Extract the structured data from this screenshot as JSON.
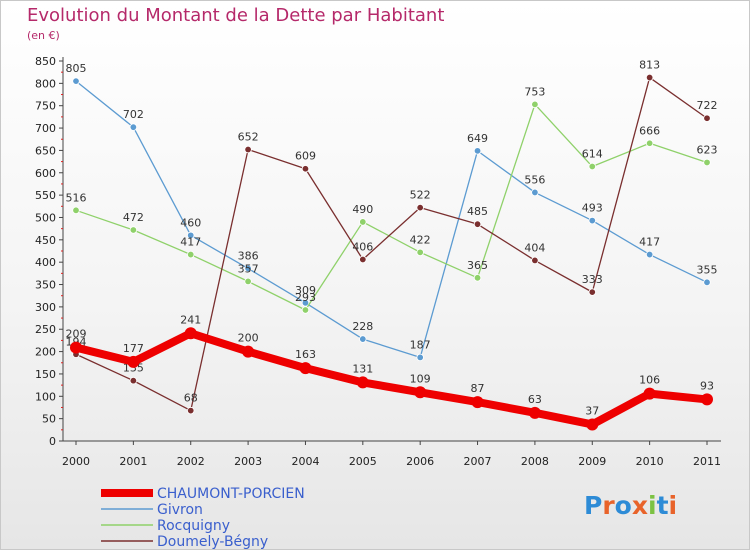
{
  "header": {
    "title": "Evolution du Montant de la Dette par Habitant",
    "subtitle": "(en €)"
  },
  "logo": {
    "text": "Proxiti",
    "letter_colors": [
      "#2d8bd6",
      "#e8632a",
      "#2d8bd6",
      "#e8632a",
      "#7cc243",
      "#2d8bd6",
      "#e8632a"
    ]
  },
  "chart_data": {
    "type": "line",
    "title": "Evolution du Montant de la Dette par Habitant",
    "subtitle": "(en €)",
    "xlabel": "",
    "ylabel": "",
    "x": [
      "2000",
      "2001",
      "2002",
      "2003",
      "2004",
      "2005",
      "2006",
      "2007",
      "2008",
      "2009",
      "2010",
      "2011"
    ],
    "ylim": [
      0,
      850
    ],
    "yticks": [
      0,
      50,
      100,
      150,
      200,
      250,
      300,
      350,
      400,
      450,
      500,
      550,
      600,
      650,
      700,
      750,
      800,
      850
    ],
    "grid": false,
    "legend_position": "bottom-left",
    "series": [
      {
        "name": "Givron",
        "color": "#5c9bd1",
        "values": [
          805,
          702,
          460,
          386,
          309,
          228,
          187,
          649,
          556,
          493,
          417,
          355
        ],
        "labels": [
          "805",
          "702",
          "460",
          "386",
          "309",
          "228",
          "187",
          "649",
          "556",
          "493",
          "417",
          "355"
        ]
      },
      {
        "name": "Rocquigny",
        "color": "#8fd16a",
        "values": [
          516,
          472,
          417,
          357,
          293,
          490,
          422,
          365,
          753,
          614,
          666,
          623
        ],
        "labels": [
          "516",
          "472",
          "417",
          "357",
          "293",
          "490",
          "422",
          "365",
          "753",
          "614",
          "666",
          "623"
        ]
      },
      {
        "name": "Doumely-Bégny",
        "color": "#7a2f2f",
        "values": [
          194,
          135,
          68,
          652,
          609,
          406,
          522,
          485,
          404,
          333,
          813,
          722
        ],
        "labels": [
          "194",
          "135",
          "68",
          "652",
          "609",
          "406",
          "522",
          "485",
          "404",
          "333",
          "813",
          "722"
        ]
      },
      {
        "name": "CHAUMONT-PORCIEN",
        "color": "#ee0000",
        "values": [
          209,
          177,
          241,
          200,
          163,
          131,
          109,
          87,
          63,
          37,
          106,
          93
        ],
        "labels": [
          "209",
          "177",
          "241",
          "200",
          "163",
          "131",
          "109",
          "87",
          "63",
          "37",
          "106",
          "93"
        ]
      }
    ],
    "legend": [
      "CHAUMONT-PORCIEN",
      "Givron",
      "Rocquigny",
      "Doumely-Bégny"
    ]
  }
}
